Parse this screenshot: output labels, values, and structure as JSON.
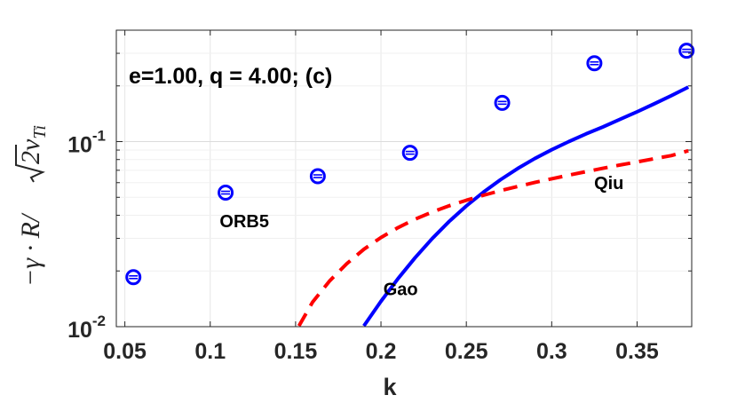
{
  "chart_data": {
    "type": "line",
    "title": "e=1.00, q = 4.00; (c)",
    "xlabel": "k",
    "ylabel": "−γ · R/√2v_Ti",
    "ylabel_parts": {
      "lhs": "−γ · R/",
      "root": "2",
      "v": "v",
      "sub": "Ti"
    },
    "xlim": [
      0.045,
      0.382
    ],
    "ylim": [
      0.01,
      0.4
    ],
    "yscale": "log",
    "x_ticks": [
      0.05,
      0.1,
      0.15,
      0.2,
      0.25,
      0.3,
      0.35
    ],
    "x_tick_labels": [
      "0.05",
      "0.1",
      "0.15",
      "0.2",
      "0.25",
      "0.3",
      "0.35"
    ],
    "y_ticks": [
      {
        "value": 0.01,
        "base": "10",
        "exp": "-2"
      },
      {
        "value": 0.1,
        "base": "10",
        "exp": "-1"
      }
    ],
    "grid": true,
    "series": [
      {
        "name": "ORB5",
        "style": "markers",
        "color": "#0000ff",
        "x": [
          0.055,
          0.109,
          0.163,
          0.217,
          0.271,
          0.325,
          0.379
        ],
        "y": [
          0.0185,
          0.053,
          0.065,
          0.087,
          0.162,
          0.265,
          0.31
        ]
      },
      {
        "name": "Gao",
        "style": "solid",
        "color": "#0000ff",
        "x": [
          0.19,
          0.2,
          0.21,
          0.22,
          0.23,
          0.24,
          0.25,
          0.26,
          0.27,
          0.28,
          0.29,
          0.3,
          0.31,
          0.32,
          0.33,
          0.34,
          0.35,
          0.36,
          0.37,
          0.38
        ],
        "y": [
          0.0101,
          0.0137,
          0.0182,
          0.0236,
          0.0299,
          0.0371,
          0.0449,
          0.0533,
          0.0622,
          0.0715,
          0.0809,
          0.0904,
          0.1,
          0.11,
          0.12,
          0.132,
          0.145,
          0.16,
          0.177,
          0.197
        ]
      },
      {
        "name": "Qiu",
        "style": "dashed",
        "color": "#ff0000",
        "x": [
          0.152,
          0.16,
          0.17,
          0.18,
          0.19,
          0.2,
          0.21,
          0.22,
          0.23,
          0.24,
          0.25,
          0.26,
          0.27,
          0.28,
          0.29,
          0.3,
          0.31,
          0.32,
          0.33,
          0.34,
          0.35,
          0.36,
          0.37,
          0.38
        ],
        "y": [
          0.0101,
          0.0136,
          0.0177,
          0.0219,
          0.0262,
          0.0303,
          0.0343,
          0.0381,
          0.0416,
          0.045,
          0.0482,
          0.0513,
          0.0543,
          0.0572,
          0.0601,
          0.063,
          0.0659,
          0.0688,
          0.0717,
          0.0747,
          0.0777,
          0.0808,
          0.084,
          0.0893
        ]
      }
    ],
    "annotations": [
      {
        "text": "ORB5",
        "x": 0.12,
        "y": 0.0345
      },
      {
        "text": "Gao",
        "x": 0.2115,
        "y": 0.0148
      },
      {
        "text": "Qiu",
        "x": 0.3335,
        "y": 0.0555
      }
    ]
  }
}
